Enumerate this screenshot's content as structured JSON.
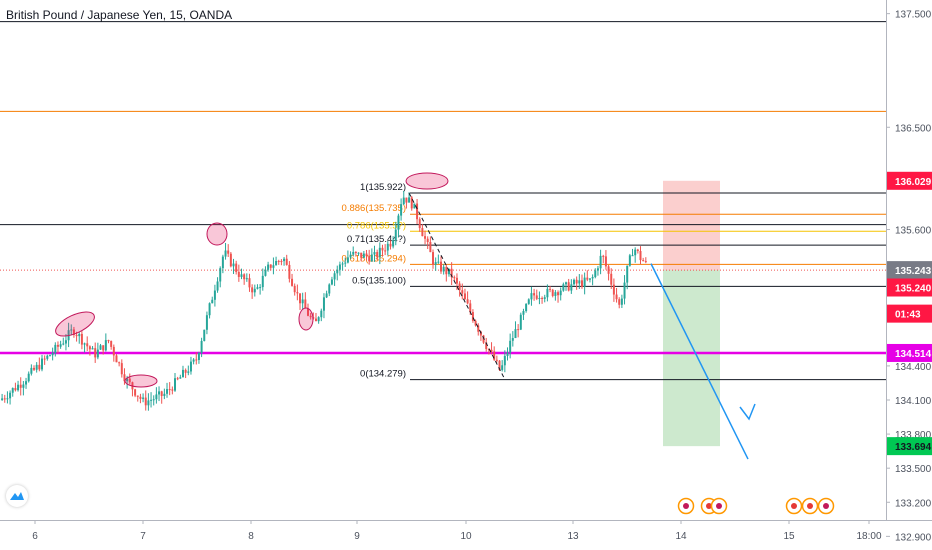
{
  "chart_data": {
    "type": "candlestick",
    "title": "British Pound / Japanese Yen, 15, OANDA",
    "ylim": [
      132.78,
      137.62
    ],
    "y_ticks": [
      "137.500",
      "136.500",
      "135.600",
      "134.400",
      "134.100",
      "133.800",
      "133.500",
      "133.200",
      "132.900"
    ],
    "x_ticks": [
      "6",
      "7",
      "8",
      "9",
      "10",
      "13",
      "14",
      "15",
      "18:00"
    ],
    "price_path": [
      {
        "t": 0.0,
        "p": 134.1
      },
      {
        "t": 0.3,
        "p": 134.25
      },
      {
        "t": 0.8,
        "p": 134.55
      },
      {
        "t": 1.05,
        "p": 134.72
      },
      {
        "t": 1.35,
        "p": 134.5
      },
      {
        "t": 1.55,
        "p": 134.62
      },
      {
        "t": 1.8,
        "p": 134.28
      },
      {
        "t": 2.05,
        "p": 134.08
      },
      {
        "t": 2.35,
        "p": 134.15
      },
      {
        "t": 2.55,
        "p": 134.28
      },
      {
        "t": 2.8,
        "p": 134.45
      },
      {
        "t": 3.05,
        "p": 135.05
      },
      {
        "t": 3.2,
        "p": 135.4
      },
      {
        "t": 3.45,
        "p": 135.18
      },
      {
        "t": 3.65,
        "p": 135.05
      },
      {
        "t": 3.85,
        "p": 135.28
      },
      {
        "t": 4.05,
        "p": 135.35
      },
      {
        "t": 4.25,
        "p": 135.02
      },
      {
        "t": 4.5,
        "p": 134.75
      },
      {
        "t": 4.72,
        "p": 135.18
      },
      {
        "t": 5.0,
        "p": 135.38
      },
      {
        "t": 5.35,
        "p": 135.36
      },
      {
        "t": 5.6,
        "p": 135.5
      },
      {
        "t": 5.75,
        "p": 135.9
      },
      {
        "t": 5.9,
        "p": 135.82
      },
      {
        "t": 6.05,
        "p": 135.55
      },
      {
        "t": 6.2,
        "p": 135.3
      },
      {
        "t": 6.45,
        "p": 135.2
      },
      {
        "t": 6.7,
        "p": 134.9
      },
      {
        "t": 6.95,
        "p": 134.58
      },
      {
        "t": 7.15,
        "p": 134.35
      },
      {
        "t": 7.3,
        "p": 134.62
      },
      {
        "t": 7.6,
        "p": 135.02
      },
      {
        "t": 7.9,
        "p": 135.05
      },
      {
        "t": 8.2,
        "p": 135.12
      },
      {
        "t": 8.45,
        "p": 135.15
      },
      {
        "t": 8.6,
        "p": 135.38
      },
      {
        "t": 8.75,
        "p": 135.1
      },
      {
        "t": 8.85,
        "p": 134.92
      },
      {
        "t": 8.95,
        "p": 135.22
      },
      {
        "t": 9.05,
        "p": 135.45
      },
      {
        "t": 9.15,
        "p": 135.35
      },
      {
        "t": 9.25,
        "p": 135.28
      }
    ],
    "horizontal_lines": [
      {
        "price": 137.43,
        "color": "#131722"
      },
      {
        "price": 136.64,
        "color": "#f57c00"
      },
      {
        "price": 135.643,
        "color": "#131722"
      },
      {
        "price": 135.243,
        "color": "#ef5350",
        "dotted": true
      },
      {
        "price": 134.514,
        "color": "#e600e6",
        "thick": true
      }
    ],
    "fib_levels": [
      {
        "label": "1(135.922)",
        "price": 135.922,
        "color": "#131722"
      },
      {
        "label": "0.886(135.735)",
        "price": 135.735,
        "color": "#f57c00"
      },
      {
        "label": "0.786(135.5?)",
        "price": 135.585,
        "color": "#f5c400"
      },
      {
        "label": "0.71(135.44?)",
        "price": 135.463,
        "color": "#131722"
      },
      {
        "label": "0.618(135.294)",
        "price": 135.294,
        "color": "#f57c00"
      },
      {
        "label": "0.5(135.100)",
        "price": 135.1,
        "color": "#131722"
      },
      {
        "label": "0(134.279)",
        "price": 134.279,
        "color": "#131722"
      }
    ],
    "price_badges": [
      {
        "text": "136.029",
        "price": 136.029,
        "bg": "#ff1744",
        "fg": "#ffffff"
      },
      {
        "text": "135.243",
        "price": 135.243,
        "bg": "#787b86",
        "fg": "#ffffff"
      },
      {
        "text": "135.240",
        "price": 135.09,
        "bg": "#ff1744",
        "fg": "#ffffff"
      },
      {
        "text": "01:43",
        "price": 134.86,
        "bg": "#ff1744",
        "fg": "#ffffff"
      },
      {
        "text": "134.514",
        "price": 134.514,
        "bg": "#e600e6",
        "fg": "#ffffff"
      },
      {
        "text": "133.694",
        "price": 133.694,
        "bg": "#00c853",
        "fg": "#131722"
      }
    ],
    "position": {
      "entry": 135.243,
      "stop": 136.029,
      "target": 133.694
    },
    "colors": {
      "up": "#26a69a",
      "down": "#ef5350",
      "arrow": "#2196f3"
    }
  }
}
